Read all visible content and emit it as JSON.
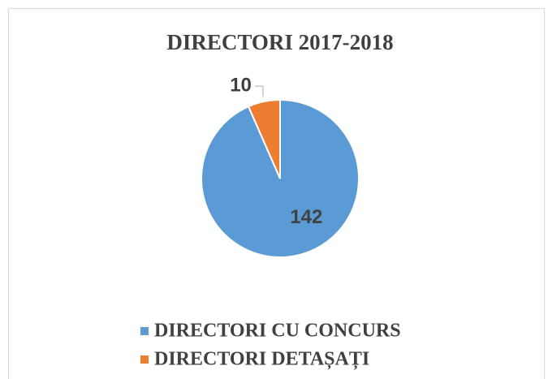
{
  "chart_data": {
    "type": "pie",
    "title": "DIRECTORI 2017-2018",
    "categories": [
      "DIRECTORI CU CONCURS",
      "DIRECTORI DETAȘAȚI"
    ],
    "values": [
      142,
      10
    ],
    "colors": [
      "#5b9bd5",
      "#ed7d31"
    ],
    "legend": "bottom"
  }
}
